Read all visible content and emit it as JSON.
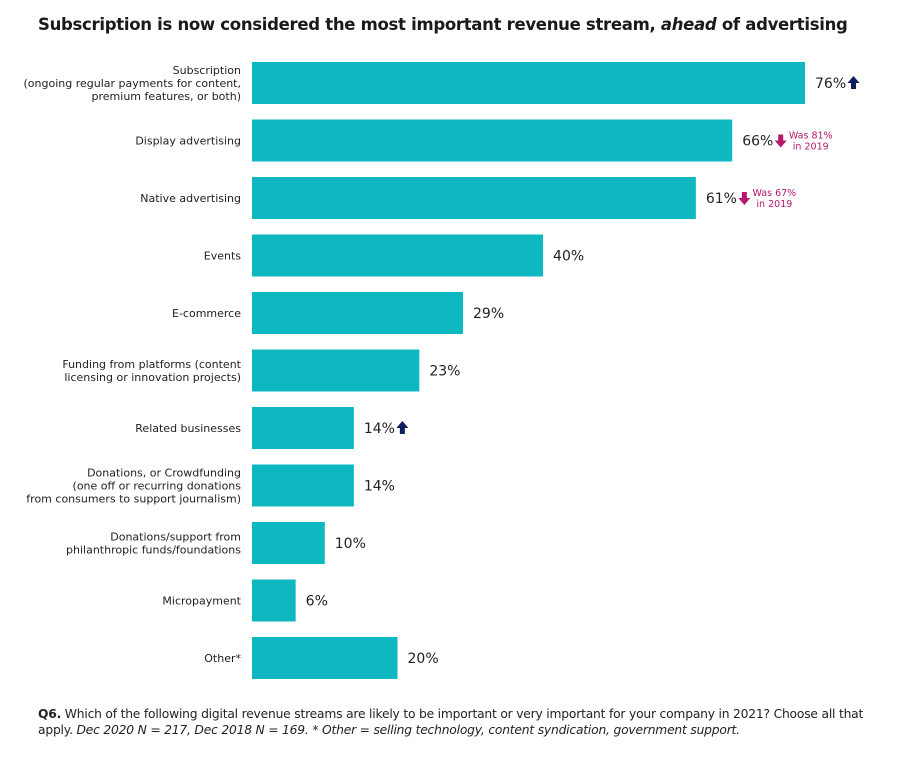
{
  "chart_data": {
    "type": "bar",
    "orientation": "horizontal",
    "title_pre": "Subscription is now considered the most important revenue stream, ",
    "title_em": "ahead",
    "title_post": " of advertising",
    "categories": [
      "Subscription\n(ongoing regular payments for content,\npremium features, or both)",
      "Display advertising",
      "Native advertising",
      "Events",
      "E-commerce",
      "Funding from platforms (content\nlicensing or innovation projects)",
      "Related businesses",
      "Donations, or Crowdfunding\n(one off or recurring donations\nfrom consumers to support journalism)",
      "Donations/support from\nphilanthropic funds/foundations",
      "Micropayment",
      "Other*"
    ],
    "values": [
      76,
      66,
      61,
      40,
      29,
      23,
      14,
      14,
      10,
      6,
      20
    ],
    "value_labels": [
      "76%",
      "66%",
      "61%",
      "40%",
      "29%",
      "23%",
      "14%",
      "14%",
      "10%",
      "6%",
      "20%"
    ],
    "xlim": [
      0,
      100
    ],
    "grid": false,
    "bar_color": "#0db8c0",
    "annotations": [
      {
        "category_index": 0,
        "icon": "arrow-up-icon",
        "color": "#0d1f5c",
        "text": ""
      },
      {
        "category_index": 1,
        "icon": "arrow-down-icon",
        "color": "#b5176a",
        "text": "Was 81%\nin 2019"
      },
      {
        "category_index": 2,
        "icon": "arrow-down-icon",
        "color": "#b5176a",
        "text": "Was 67%\nin 2019"
      },
      {
        "category_index": 6,
        "icon": "arrow-up-icon",
        "color": "#0d1f5c",
        "text": ""
      }
    ]
  },
  "footnote": {
    "qid": "Q6.",
    "question": " Which of the following digital revenue streams are likely to be important or very important for your company in 2021? Choose all that apply. ",
    "sample": "Dec 2020 N = 217, Dec 2018 N = 169. * Other = selling technology, content syndication, government support."
  }
}
